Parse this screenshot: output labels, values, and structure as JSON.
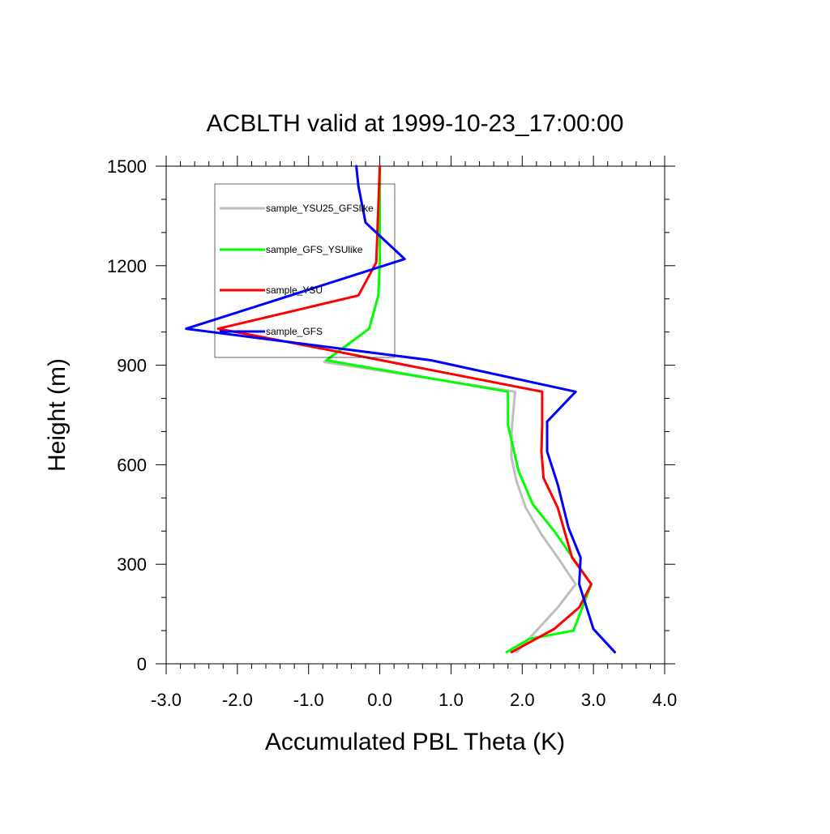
{
  "chart_data": {
    "type": "line",
    "title": "ACBLTH valid at 1999-10-23_17:00:00",
    "xlabel": "Accumulated PBL Theta (K)",
    "ylabel": "Height (m)",
    "xlim": [
      -3.0,
      4.0
    ],
    "ylim": [
      0,
      1500
    ],
    "x_ticks": [
      -3.0,
      -2.0,
      -1.0,
      0.0,
      1.0,
      2.0,
      3.0,
      4.0
    ],
    "x_tick_labels": [
      "-3.0",
      "-2.0",
      "-1.0",
      "0.0",
      "1.0",
      "2.0",
      "3.0",
      "4.0"
    ],
    "y_ticks": [
      0,
      300,
      600,
      900,
      1200,
      1500
    ],
    "y_tick_labels": [
      "0",
      "300",
      "600",
      "900",
      "1200",
      "1500"
    ],
    "grid": false,
    "legend_position": "top-left",
    "series": [
      {
        "name": "sample_YSU25_GFSlike",
        "color": "#bebebe",
        "points": [
          [
            1.92,
            35
          ],
          [
            2.2,
            100
          ],
          [
            2.5,
            170
          ],
          [
            2.75,
            240
          ],
          [
            2.5,
            320
          ],
          [
            2.27,
            390
          ],
          [
            2.05,
            470
          ],
          [
            1.92,
            550
          ],
          [
            1.85,
            620
          ],
          [
            1.85,
            700
          ],
          [
            1.9,
            820
          ],
          [
            -0.78,
            910
          ],
          [
            -0.15,
            1010
          ],
          [
            -0.02,
            1110
          ],
          [
            0.0,
            1210
          ],
          [
            0.0,
            1500
          ]
        ]
      },
      {
        "name": "sample_GFS_YSUlike",
        "color": "#00ff00",
        "points": [
          [
            1.78,
            35
          ],
          [
            2.1,
            75
          ],
          [
            2.72,
            100
          ],
          [
            2.97,
            240
          ],
          [
            2.45,
            400
          ],
          [
            2.15,
            480
          ],
          [
            1.95,
            580
          ],
          [
            1.8,
            720
          ],
          [
            1.8,
            820
          ],
          [
            -0.75,
            915
          ],
          [
            -0.15,
            1010
          ],
          [
            -0.02,
            1110
          ],
          [
            0.0,
            1210
          ],
          [
            0.0,
            1500
          ]
        ]
      },
      {
        "name": "sample_YSU",
        "color": "#ff0000",
        "points": [
          [
            1.85,
            35
          ],
          [
            2.45,
            105
          ],
          [
            2.8,
            170
          ],
          [
            2.97,
            240
          ],
          [
            2.7,
            320
          ],
          [
            2.5,
            470
          ],
          [
            2.3,
            560
          ],
          [
            2.27,
            640
          ],
          [
            2.28,
            720
          ],
          [
            2.28,
            820
          ],
          [
            -1.65,
            985
          ],
          [
            -2.27,
            1010
          ],
          [
            -0.3,
            1110
          ],
          [
            -0.05,
            1210
          ],
          [
            0.0,
            1500
          ]
        ]
      },
      {
        "name": "sample_GFS",
        "color": "#0000ff",
        "points": [
          [
            3.3,
            35
          ],
          [
            3.0,
            105
          ],
          [
            2.8,
            240
          ],
          [
            2.82,
            320
          ],
          [
            2.65,
            410
          ],
          [
            2.5,
            540
          ],
          [
            2.35,
            640
          ],
          [
            2.35,
            730
          ],
          [
            2.75,
            820
          ],
          [
            0.72,
            915
          ],
          [
            -2.72,
            1010
          ],
          [
            0.35,
            1220
          ],
          [
            -0.2,
            1330
          ],
          [
            -0.3,
            1440
          ],
          [
            -0.33,
            1500
          ]
        ]
      }
    ]
  }
}
